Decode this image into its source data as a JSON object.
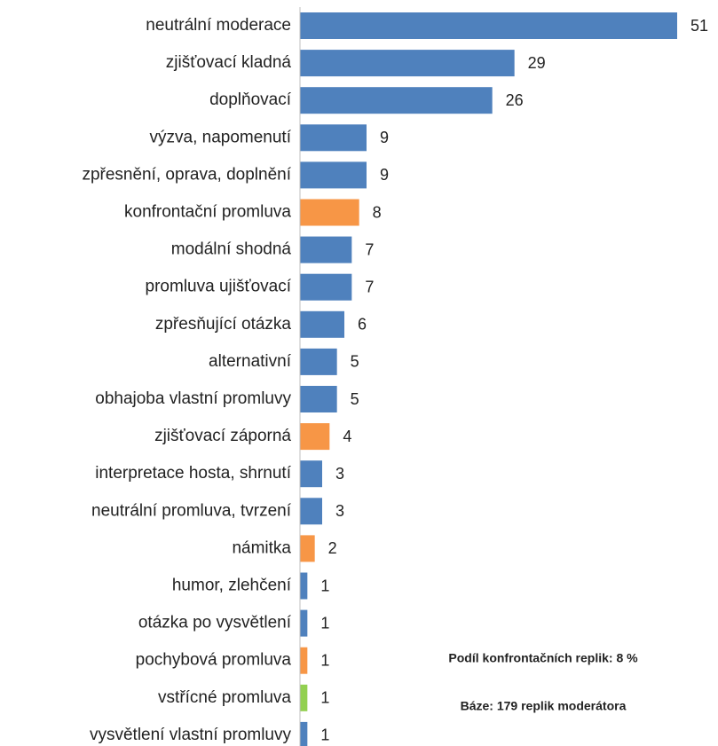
{
  "chart_data": {
    "type": "bar",
    "orientation": "horizontal",
    "categories": [
      "neutrální moderace",
      "zjišťovací kladná",
      "doplňovací",
      "výzva, napomenutí",
      "zpřesnění, oprava, doplnění",
      "konfrontační promluva",
      "modální shodná",
      "promluva ujišťovací",
      "zpřesňující otázka",
      "alternativní",
      "obhajoba vlastní promluvy",
      "zjišťovací záporná",
      "interpretace hosta, shrnutí",
      "neutrální promluva, tvrzení",
      "námitka",
      "humor, zlehčení",
      "otázka po vysvětlení",
      "pochybová promluva",
      "vstřícné promluva",
      "vysvětlení vlastní promluvy"
    ],
    "values": [
      51,
      29,
      26,
      9,
      9,
      8,
      7,
      7,
      6,
      5,
      5,
      4,
      3,
      3,
      2,
      1,
      1,
      1,
      1,
      1
    ],
    "colors": [
      "#4f81bd",
      "#4f81bd",
      "#4f81bd",
      "#4f81bd",
      "#4f81bd",
      "#f79646",
      "#4f81bd",
      "#4f81bd",
      "#4f81bd",
      "#4f81bd",
      "#4f81bd",
      "#f79646",
      "#4f81bd",
      "#4f81bd",
      "#f79646",
      "#4f81bd",
      "#4f81bd",
      "#f79646",
      "#92d050",
      "#4f81bd"
    ],
    "xlim": [
      0,
      51
    ],
    "annotations": [
      "Podíl konfrontačních replik: 8 %",
      "Báze: 179 replik moderátora"
    ]
  }
}
